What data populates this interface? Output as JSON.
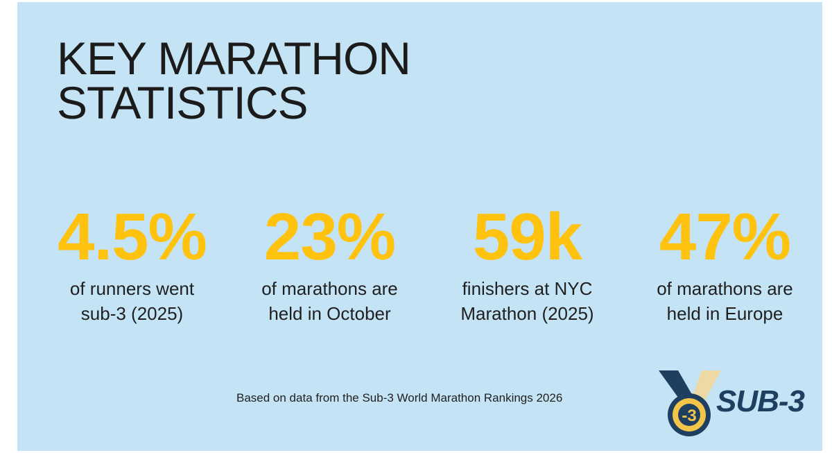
{
  "title": {
    "line1": "KEY MARATHON",
    "line2": "STATISTICS"
  },
  "stats": [
    {
      "value": "4.5%",
      "label_line1": "of runners went",
      "label_line2": "sub-3 (2025)"
    },
    {
      "value": "23%",
      "label_line1": "of marathons are",
      "label_line2": "held in October"
    },
    {
      "value": "59k",
      "label_line1": "finishers at NYC",
      "label_line2": "Marathon (2025)"
    },
    {
      "value": "47%",
      "label_line1": "of marathons are",
      "label_line2": "held in Europe"
    }
  ],
  "source": "Based on data from the Sub-3 World Marathon Rankings 2026",
  "logo": {
    "medal_text": "-3",
    "wordmark": "SUB-3",
    "colors": {
      "navy": "#1e3f60",
      "gold": "#f3c44a",
      "ribbon_light": "#ecd9a4"
    }
  },
  "colors": {
    "background": "#c4e3f4",
    "accent": "#ffc20e",
    "text": "#1f1f1f"
  }
}
